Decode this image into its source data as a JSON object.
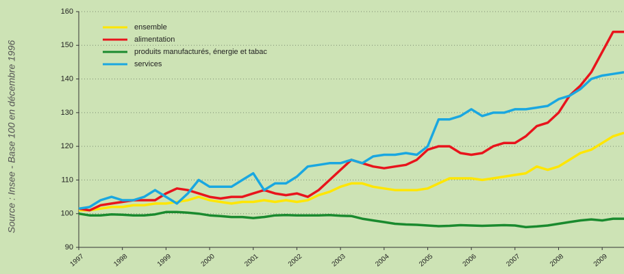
{
  "chart_data": {
    "type": "line",
    "subtitle": "Source : Insee - Base 100 en décembre 1996",
    "categories": [
      "1997",
      null,
      null,
      null,
      "1998",
      null,
      null,
      null,
      "1999",
      null,
      null,
      null,
      "2000",
      null,
      null,
      null,
      "2001",
      null,
      null,
      null,
      "2002",
      null,
      null,
      null,
      "2003",
      null,
      null,
      null,
      "2004",
      null,
      null,
      null,
      "2005",
      null,
      null,
      null,
      "2006",
      null,
      null,
      null,
      "2007",
      null,
      null,
      null,
      "2008",
      null,
      null,
      null,
      "2009",
      null,
      null
    ],
    "series": [
      {
        "name": "ensemble",
        "color": "#ffe600",
        "values": [
          101,
          101,
          101.5,
          102,
          102,
          102.5,
          102.5,
          103,
          103,
          103.5,
          104,
          105,
          104,
          103.5,
          103,
          103.5,
          103.5,
          104,
          103.5,
          104,
          103.5,
          104,
          105.5,
          106.5,
          108,
          109,
          109,
          108,
          107.5,
          107,
          107,
          107,
          107.5,
          109,
          110.5,
          110.5,
          110.5,
          110,
          110.5,
          111,
          111.5,
          112,
          114,
          113,
          114,
          116,
          118,
          119,
          121,
          123,
          124
        ]
      },
      {
        "name": "alimentation",
        "color": "#e8141c",
        "values": [
          101.5,
          101,
          102.5,
          103,
          103.5,
          104,
          104,
          104,
          106,
          107.5,
          107,
          106,
          105,
          104.5,
          105,
          105,
          106,
          107,
          106,
          105.5,
          106,
          105,
          107,
          110,
          113,
          116,
          115,
          114,
          113.5,
          114,
          114.5,
          116,
          119,
          120,
          120,
          118,
          117.5,
          118,
          120,
          121,
          121,
          123,
          126,
          127,
          130,
          135,
          138,
          142,
          148,
          154,
          154
        ]
      },
      {
        "name": "produits manufacturés, énergie et tabac",
        "color": "#1a8a2e",
        "values": [
          100,
          99.5,
          99.5,
          99.8,
          99.7,
          99.5,
          99.5,
          99.8,
          100.5,
          100.5,
          100.3,
          100,
          99.5,
          99.3,
          99,
          99,
          98.7,
          99,
          99.5,
          99.6,
          99.5,
          99.5,
          99.5,
          99.6,
          99.4,
          99.3,
          98.5,
          98,
          97.5,
          97,
          96.8,
          96.7,
          96.5,
          96.3,
          96.4,
          96.6,
          96.5,
          96.4,
          96.5,
          96.6,
          96.5,
          96,
          96.2,
          96.5,
          97,
          97.5,
          98,
          98.3,
          98,
          98.5,
          98.5
        ]
      },
      {
        "name": "services",
        "color": "#1aa7e0",
        "values": [
          101.5,
          102,
          104,
          105,
          104,
          104,
          105,
          107,
          105,
          103,
          106,
          110,
          108,
          108,
          108,
          110,
          112,
          107,
          109,
          109,
          111,
          114,
          114.5,
          115,
          115,
          116,
          115,
          117,
          117.5,
          117.5,
          118,
          117.5,
          120,
          128,
          128,
          129,
          131,
          129,
          130,
          130,
          131,
          131,
          131.5,
          132,
          134,
          135,
          137,
          140,
          141,
          141.5,
          142
        ]
      }
    ],
    "ylim": [
      90,
      160
    ],
    "yticks": [
      90,
      100,
      110,
      120,
      130,
      140,
      150,
      160
    ],
    "grid": true
  }
}
